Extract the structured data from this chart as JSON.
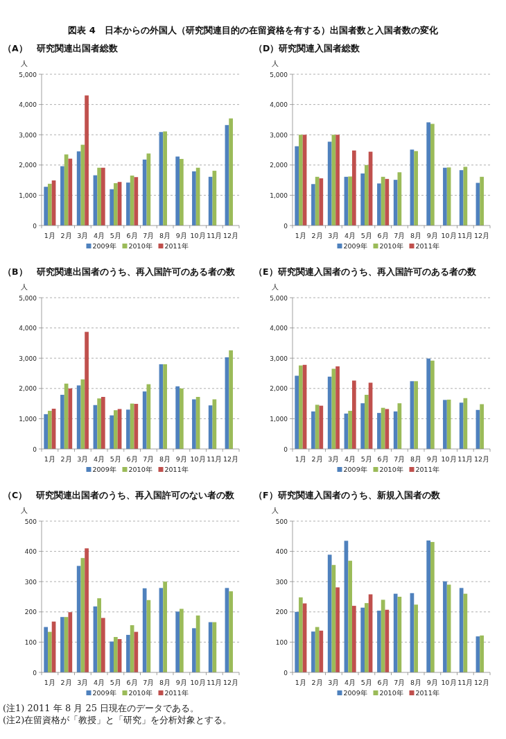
{
  "chart_data": [
    {
      "type": "bar",
      "title": "（A）　研究関連出国者総数",
      "ylabel": "人",
      "annotations": [
        "図表 4　日本からの外国人（研究関連目的の在留資格を有する）出国者数と入国者数の変化"
      ],
      "categories": [
        "1月",
        "2月",
        "3月",
        "4月",
        "5月",
        "6月",
        "7月",
        "8月",
        "9月",
        "10月",
        "11月",
        "12月"
      ],
      "ylim": [
        0,
        5000
      ],
      "yticks": [
        0,
        {
          "value": 1000,
          "label": "1,000"
        },
        {
          "value": 2000,
          "label": "2,000"
        },
        {
          "value": 3000,
          "label": "3,000"
        },
        {
          "value": 4000,
          "label": "4,000"
        },
        {
          "value": 5000,
          "label": "5,000"
        }
      ],
      "grid": "y",
      "legend": "bottom",
      "series": [
        {
          "name": "2009年",
          "color": "#4f81bd",
          "values": [
            1280,
            1960,
            2450,
            1660,
            1200,
            1420,
            2180,
            3090,
            2280,
            1790,
            1610,
            3320
          ]
        },
        {
          "name": "2010年",
          "color": "#9bbb59",
          "values": [
            1380,
            2350,
            2670,
            1910,
            1400,
            1650,
            2380,
            3110,
            2200,
            1910,
            1810,
            3540
          ]
        },
        {
          "name": "2011年",
          "color": "#c0504d",
          "values": [
            1490,
            2210,
            4300,
            1910,
            1440,
            1600,
            null,
            null,
            null,
            null,
            null,
            null
          ]
        }
      ]
    },
    {
      "type": "bar",
      "title": "（D）研究関連入国者総数",
      "ylabel": "人",
      "categories": [
        "1月",
        "2月",
        "3月",
        "4月",
        "5月",
        "6月",
        "7月",
        "8月",
        "9月",
        "10月",
        "11月",
        "12月"
      ],
      "ylim": [
        0,
        5000
      ],
      "yticks": [
        0,
        {
          "value": 1000,
          "label": "1,000"
        },
        {
          "value": 2000,
          "label": "2,000"
        },
        {
          "value": 3000,
          "label": "3,000"
        },
        {
          "value": 4000,
          "label": "4,000"
        },
        {
          "value": 5000,
          "label": "5,000"
        }
      ],
      "grid": "y",
      "legend": "bottom",
      "series": [
        {
          "name": "2009年",
          "color": "#4f81bd",
          "values": [
            2620,
            1370,
            2770,
            1610,
            1720,
            1390,
            1510,
            2510,
            3410,
            1910,
            1830,
            1410
          ]
        },
        {
          "name": "2010年",
          "color": "#9bbb59",
          "values": [
            3000,
            1610,
            3000,
            1620,
            2000,
            1610,
            1760,
            2460,
            3360,
            1920,
            1940,
            1610
          ]
        },
        {
          "name": "2011年",
          "color": "#c0504d",
          "values": [
            3000,
            1560,
            3000,
            2480,
            2440,
            1540,
            null,
            null,
            null,
            null,
            null,
            null
          ]
        }
      ]
    },
    {
      "type": "bar",
      "title": "（B）　研究関連出国者のうち、再入国許可のある者の数",
      "ylabel": "人",
      "categories": [
        "1月",
        "2月",
        "3月",
        "4月",
        "5月",
        "6月",
        "7月",
        "8月",
        "9月",
        "10月",
        "11月",
        "12月"
      ],
      "ylim": [
        0,
        5000
      ],
      "yticks": [
        0,
        {
          "value": 1000,
          "label": "1,000"
        },
        {
          "value": 2000,
          "label": "2,000"
        },
        {
          "value": 3000,
          "label": "3,000"
        },
        {
          "value": 4000,
          "label": "4,000"
        },
        {
          "value": 5000,
          "label": "5,000"
        }
      ],
      "grid": "y",
      "legend": "bottom",
      "series": [
        {
          "name": "2009年",
          "color": "#4f81bd",
          "values": [
            1150,
            1790,
            2100,
            1450,
            1110,
            1300,
            1900,
            2800,
            2070,
            1640,
            1440,
            3030
          ]
        },
        {
          "name": "2010年",
          "color": "#9bbb59",
          "values": [
            1260,
            2160,
            2300,
            1670,
            1280,
            1500,
            2140,
            2800,
            2000,
            1720,
            1640,
            3260
          ]
        },
        {
          "name": "2011年",
          "color": "#c0504d",
          "values": [
            1330,
            2000,
            3870,
            1720,
            1320,
            1490,
            null,
            null,
            null,
            null,
            null,
            null
          ]
        }
      ]
    },
    {
      "type": "bar",
      "title": "（E）研究関連入国者のうち、再入国許可のある者の数",
      "ylabel": "人",
      "categories": [
        "1月",
        "2月",
        "3月",
        "4月",
        "5月",
        "6月",
        "7月",
        "8月",
        "9月",
        "10月",
        "11月",
        "12月"
      ],
      "ylim": [
        0,
        5000
      ],
      "yticks": [
        0,
        {
          "value": 1000,
          "label": "1,000"
        },
        {
          "value": 2000,
          "label": "2,000"
        },
        {
          "value": 3000,
          "label": "3,000"
        },
        {
          "value": 4000,
          "label": "4,000"
        },
        {
          "value": 5000,
          "label": "5,000"
        }
      ],
      "grid": "y",
      "legend": "bottom",
      "series": [
        {
          "name": "2009年",
          "color": "#4f81bd",
          "values": [
            2420,
            1240,
            2390,
            1170,
            1510,
            1190,
            1240,
            2240,
            2990,
            1620,
            1530,
            1290
          ]
        },
        {
          "name": "2010年",
          "color": "#9bbb59",
          "values": [
            2760,
            1460,
            2650,
            1260,
            1790,
            1360,
            1510,
            2240,
            2920,
            1630,
            1680,
            1480
          ]
        },
        {
          "name": "2011年",
          "color": "#c0504d",
          "values": [
            2780,
            1430,
            2730,
            2260,
            2190,
            1320,
            null,
            null,
            null,
            null,
            null,
            null
          ]
        }
      ]
    },
    {
      "type": "bar",
      "title": "（C）　研究関連出国者のうち、再入国許可のない者の数",
      "ylabel": "人",
      "annotations": [
        "(注1) 2011 年 8 月 25 日現在のデータである。",
        "(注2)在留資格が「教授」と「研究」を分析対象とする。"
      ],
      "categories": [
        "1月",
        "2月",
        "3月",
        "4月",
        "5月",
        "6月",
        "7月",
        "8月",
        "9月",
        "10月",
        "11月",
        "12月"
      ],
      "ylim": [
        0,
        500
      ],
      "yticks": [
        0,
        100,
        200,
        300,
        400,
        500
      ],
      "grid": "y",
      "legend": "bottom",
      "series": [
        {
          "name": "2009年",
          "color": "#4f81bd",
          "values": [
            150,
            183,
            352,
            218,
            102,
            124,
            278,
            279,
            201,
            146,
            166,
            279
          ]
        },
        {
          "name": "2010年",
          "color": "#9bbb59",
          "values": [
            134,
            183,
            378,
            245,
            117,
            156,
            239,
            300,
            210,
            188,
            166,
            268
          ]
        },
        {
          "name": "2011年",
          "color": "#c0504d",
          "values": [
            168,
            199,
            410,
            180,
            110,
            134,
            null,
            null,
            null,
            null,
            null,
            null
          ]
        }
      ]
    },
    {
      "type": "bar",
      "title": "（F）研究関連入国者のうち、新規入国者の数",
      "ylabel": "人",
      "categories": [
        "1月",
        "2月",
        "3月",
        "4月",
        "5月",
        "6月",
        "7月",
        "8月",
        "9月",
        "10月",
        "11月",
        "12月"
      ],
      "ylim": [
        0,
        500
      ],
      "yticks": [
        0,
        100,
        200,
        300,
        400,
        500
      ],
      "grid": "y",
      "legend": "bottom",
      "series": [
        {
          "name": "2009年",
          "color": "#4f81bd",
          "values": [
            200,
            135,
            389,
            435,
            214,
            204,
            260,
            262,
            436,
            301,
            279,
            119
          ]
        },
        {
          "name": "2010年",
          "color": "#9bbb59",
          "values": [
            248,
            150,
            355,
            369,
            229,
            240,
            250,
            224,
            431,
            290,
            260,
            122
          ]
        },
        {
          "name": "2011年",
          "color": "#c0504d",
          "values": [
            228,
            138,
            281,
            220,
            258,
            207,
            null,
            null,
            null,
            null,
            null,
            null
          ]
        }
      ]
    }
  ]
}
